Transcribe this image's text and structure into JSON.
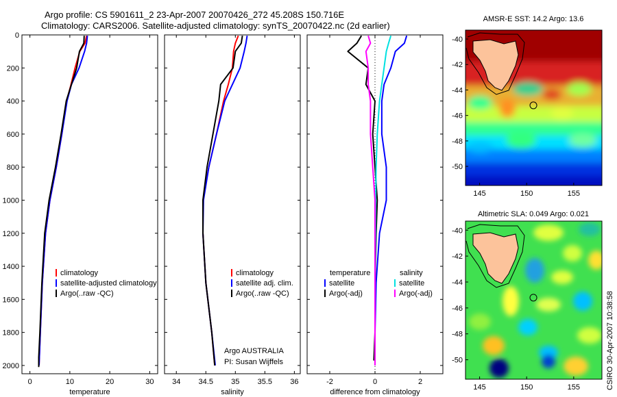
{
  "header": {
    "line1": "Argo profile: CS 5901611_2 23-Apr-2007 20070426_272 45.208S 150.716E",
    "line2": "Climatology: CARS2006. Satellite-adjusted climatology: synTS_20070422.nc (2d earlier)"
  },
  "stamp": "CSIRO 30-Apr-2007 10:38:58",
  "colors": {
    "climatology": "#ff0000",
    "satellite": "#0000ff",
    "argo": "#000000",
    "sal_satellite": "#00e0e0",
    "sal_argo": "#ff00ff"
  },
  "chart_data": [
    {
      "type": "line",
      "panel": "temperature",
      "xlabel": "temperature",
      "ylabel": "",
      "xlim": [
        -2,
        32
      ],
      "ylim": [
        2050,
        0
      ],
      "xticks": [
        0,
        10,
        20,
        30
      ],
      "yticks": [
        0,
        200,
        400,
        600,
        800,
        1000,
        1200,
        1400,
        1600,
        1800,
        2000
      ],
      "grid": false,
      "legend_position": "lower-right",
      "series": [
        {
          "name": "climatology",
          "color": "#ff0000",
          "x": [
            14.2,
            13.8,
            12.5,
            11.3,
            10.3,
            9.2,
            8.0,
            6.6,
            5.0,
            3.9,
            3.1,
            2.6,
            2.3
          ],
          "y": [
            5,
            50,
            100,
            200,
            300,
            400,
            600,
            800,
            1000,
            1200,
            1500,
            1800,
            2000
          ]
        },
        {
          "name": "satellite-adjusted climatology",
          "color": "#0000ff",
          "x": [
            14.4,
            14.2,
            13.7,
            12.3,
            10.4,
            9.3,
            8.0,
            6.6,
            5.0,
            3.9,
            3.1,
            2.6,
            2.3
          ],
          "y": [
            5,
            50,
            100,
            200,
            300,
            400,
            600,
            800,
            1000,
            1200,
            1500,
            1800,
            2000
          ]
        },
        {
          "name": "Argo(..raw -QC)",
          "color": "#000000",
          "x": [
            13.6,
            13.5,
            12.4,
            11.7,
            10.4,
            9.1,
            7.8,
            6.4,
            4.8,
            3.7,
            3.0,
            2.5,
            2.2,
            2.2
          ],
          "y": [
            5,
            50,
            100,
            200,
            300,
            400,
            600,
            800,
            1000,
            1200,
            1500,
            1800,
            1950,
            2010
          ]
        }
      ]
    },
    {
      "type": "line",
      "panel": "salinity",
      "xlabel": "salinity",
      "ylabel": "",
      "xlim": [
        33.8,
        36.1
      ],
      "ylim": [
        2050,
        0
      ],
      "xticks": [
        34,
        34.5,
        35,
        35.5,
        36
      ],
      "xticklabels": [
        "34",
        "34.5",
        "35",
        "35.5",
        "36"
      ],
      "grid": false,
      "legend_position": "lower-right",
      "series": [
        {
          "name": "climatology",
          "color": "#ff0000",
          "x": [
            35.05,
            35.0,
            34.97,
            34.95,
            34.88,
            34.8,
            34.68,
            34.55,
            34.45,
            34.45,
            34.5,
            34.6,
            34.65
          ],
          "y": [
            5,
            50,
            100,
            200,
            300,
            400,
            600,
            800,
            1000,
            1200,
            1500,
            1800,
            2000
          ]
        },
        {
          "name": "satellite adj. clim.",
          "color": "#0000ff",
          "x": [
            35.2,
            35.18,
            35.15,
            35.08,
            34.95,
            34.82,
            34.68,
            34.55,
            34.46,
            34.45,
            34.5,
            34.6,
            34.66
          ],
          "y": [
            5,
            50,
            100,
            200,
            300,
            400,
            600,
            800,
            1000,
            1200,
            1500,
            1800,
            2000
          ]
        },
        {
          "name": "Argo(..raw -QC)",
          "color": "#000000",
          "x": [
            35.12,
            35.1,
            35.0,
            34.96,
            34.75,
            34.72,
            34.62,
            34.52,
            34.45,
            34.45,
            34.5,
            34.6,
            34.65
          ],
          "y": [
            5,
            50,
            100,
            200,
            300,
            400,
            600,
            800,
            1000,
            1200,
            1500,
            1800,
            2000
          ]
        }
      ],
      "annotations": [
        "Argo AUSTRALIA",
        "PI: Susan Wijffels"
      ]
    },
    {
      "type": "line",
      "panel": "difference",
      "xlabel": "difference from climatology",
      "ylabel": "",
      "xlim": [
        -3,
        3
      ],
      "ylim": [
        2050,
        0
      ],
      "xticks": [
        -2,
        0,
        2
      ],
      "grid": false,
      "legend_position": "lower-right",
      "legend_headers": [
        "temperature",
        "salinity"
      ],
      "series": [
        {
          "name": "satellite",
          "group": "temperature",
          "color": "#0000ff",
          "x": [
            1.4,
            1.3,
            0.9,
            0.7,
            0.4,
            0.3,
            0.3,
            0.5,
            0.5,
            0.2,
            0.05,
            0.0,
            0.0
          ],
          "y": [
            5,
            50,
            100,
            200,
            300,
            400,
            600,
            800,
            1000,
            1200,
            1500,
            1800,
            2000
          ]
        },
        {
          "name": "Argo(-adj)",
          "group": "temperature",
          "color": "#000000",
          "x": [
            -0.6,
            -0.8,
            -1.2,
            -0.3,
            -0.4,
            0.0,
            -0.1,
            0.0,
            0.1,
            0.05,
            0.0,
            0.0,
            -0.05
          ],
          "y": [
            5,
            50,
            100,
            200,
            300,
            400,
            600,
            800,
            1000,
            1200,
            1500,
            1800,
            1970
          ]
        },
        {
          "name": "satellite",
          "group": "salinity",
          "color": "#00e0e0",
          "x": [
            0.7,
            0.6,
            0.5,
            0.4,
            0.3,
            0.2,
            0.1,
            0.05,
            0.03,
            0.02,
            0.0,
            0.0,
            0.0
          ],
          "y": [
            5,
            50,
            100,
            200,
            300,
            400,
            600,
            800,
            1000,
            1200,
            1500,
            1800,
            2000
          ]
        },
        {
          "name": "Argo(-adj)",
          "group": "salinity",
          "color": "#ff00ff",
          "x": [
            -0.3,
            -0.2,
            -0.4,
            -0.3,
            -0.3,
            -0.2,
            -0.2,
            -0.1,
            0.0,
            0.0,
            0.0,
            0.0,
            0.0
          ],
          "y": [
            5,
            50,
            100,
            200,
            300,
            400,
            600,
            800,
            1000,
            1200,
            1500,
            1800,
            2000
          ]
        }
      ]
    },
    {
      "type": "heatmap",
      "panel": "sst_map",
      "title": "AMSR-E SST: 14.2 Argo: 13.6",
      "xlim": [
        143.5,
        158
      ],
      "ylim": [
        -51.5,
        -39.3
      ],
      "xticks": [
        145,
        150,
        155
      ],
      "yticks": [
        -40,
        -42,
        -44,
        -46,
        -48,
        -50
      ],
      "marker": {
        "lon": 150.716,
        "lat": -45.208
      }
    },
    {
      "type": "heatmap",
      "panel": "sla_map",
      "title": "Altimetric SLA: 0.049 Argo: 0.021",
      "xlim": [
        143.5,
        158
      ],
      "ylim": [
        -51.5,
        -39.3
      ],
      "xticks": [
        145,
        150,
        155
      ],
      "yticks": [
        -40,
        -42,
        -44,
        -46,
        -48,
        -50
      ],
      "marker": {
        "lon": 150.716,
        "lat": -45.208
      }
    }
  ]
}
